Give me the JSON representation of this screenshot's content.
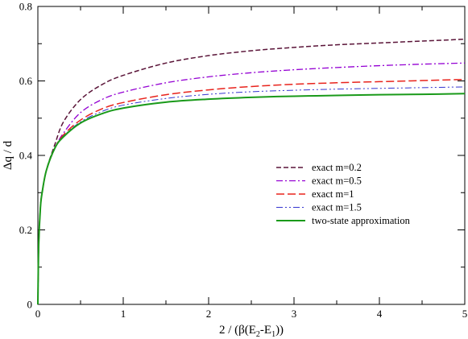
{
  "chart_data": {
    "type": "line",
    "xlabel_parts": [
      "2 / (β(E",
      "2",
      "-E",
      "1",
      "))"
    ],
    "ylabel": "Δq / d",
    "xlim": [
      0,
      5
    ],
    "ylim": [
      0,
      0.8
    ],
    "xticks": [
      "0",
      "1",
      "2",
      "3",
      "4",
      "5"
    ],
    "yticks": [
      "0",
      "0.2",
      "0.4",
      "0.6",
      "0.8"
    ],
    "grid": false,
    "legend_position": "center-right",
    "series": [
      {
        "name": "exact  m=0.2",
        "color": "#5a1438",
        "style": "dashed",
        "x": [
          0,
          0.01,
          0.03,
          0.05,
          0.1,
          0.2,
          0.3,
          0.5,
          0.75,
          1,
          1.5,
          2,
          2.5,
          3,
          3.5,
          4,
          4.5,
          5
        ],
        "y": [
          0,
          0.16,
          0.26,
          0.3,
          0.36,
          0.43,
          0.49,
          0.55,
          0.59,
          0.615,
          0.648,
          0.668,
          0.681,
          0.69,
          0.697,
          0.702,
          0.707,
          0.712
        ]
      },
      {
        "name": "exact  m=0.5",
        "color": "#9400d3",
        "style": "dashdot",
        "x": [
          0,
          0.01,
          0.03,
          0.05,
          0.1,
          0.2,
          0.3,
          0.5,
          0.75,
          1,
          1.5,
          2,
          2.5,
          3,
          3.5,
          4,
          4.5,
          5
        ],
        "y": [
          0,
          0.16,
          0.26,
          0.3,
          0.36,
          0.42,
          0.46,
          0.515,
          0.55,
          0.57,
          0.595,
          0.611,
          0.622,
          0.63,
          0.636,
          0.641,
          0.645,
          0.648
        ]
      },
      {
        "name": "exact  m=1",
        "color": "#e8231c",
        "style": "longdash",
        "x": [
          0,
          0.01,
          0.03,
          0.05,
          0.1,
          0.2,
          0.3,
          0.5,
          0.75,
          1,
          1.5,
          2,
          2.5,
          3,
          3.5,
          4,
          4.5,
          5
        ],
        "y": [
          0,
          0.16,
          0.26,
          0.3,
          0.36,
          0.42,
          0.455,
          0.495,
          0.525,
          0.542,
          0.563,
          0.576,
          0.585,
          0.591,
          0.595,
          0.598,
          0.601,
          0.604
        ]
      },
      {
        "name": "exact  m=1.5",
        "color": "#3535d0",
        "style": "dashdotdot",
        "x": [
          0,
          0.01,
          0.03,
          0.05,
          0.1,
          0.2,
          0.3,
          0.5,
          0.75,
          1,
          1.5,
          2,
          2.5,
          3,
          3.5,
          4,
          4.5,
          5
        ],
        "y": [
          0,
          0.16,
          0.26,
          0.3,
          0.36,
          0.42,
          0.452,
          0.49,
          0.518,
          0.535,
          0.553,
          0.564,
          0.571,
          0.575,
          0.578,
          0.58,
          0.582,
          0.584
        ]
      },
      {
        "name": "two-state approximation",
        "color": "#1a9a1a",
        "style": "solid",
        "x": [
          0,
          0.01,
          0.03,
          0.05,
          0.1,
          0.2,
          0.3,
          0.5,
          0.75,
          1,
          1.5,
          2,
          2.5,
          3,
          3.5,
          4,
          4.5,
          5
        ],
        "y": [
          0,
          0.16,
          0.26,
          0.3,
          0.36,
          0.42,
          0.45,
          0.487,
          0.512,
          0.527,
          0.543,
          0.551,
          0.556,
          0.559,
          0.561,
          0.563,
          0.564,
          0.566
        ]
      }
    ]
  }
}
